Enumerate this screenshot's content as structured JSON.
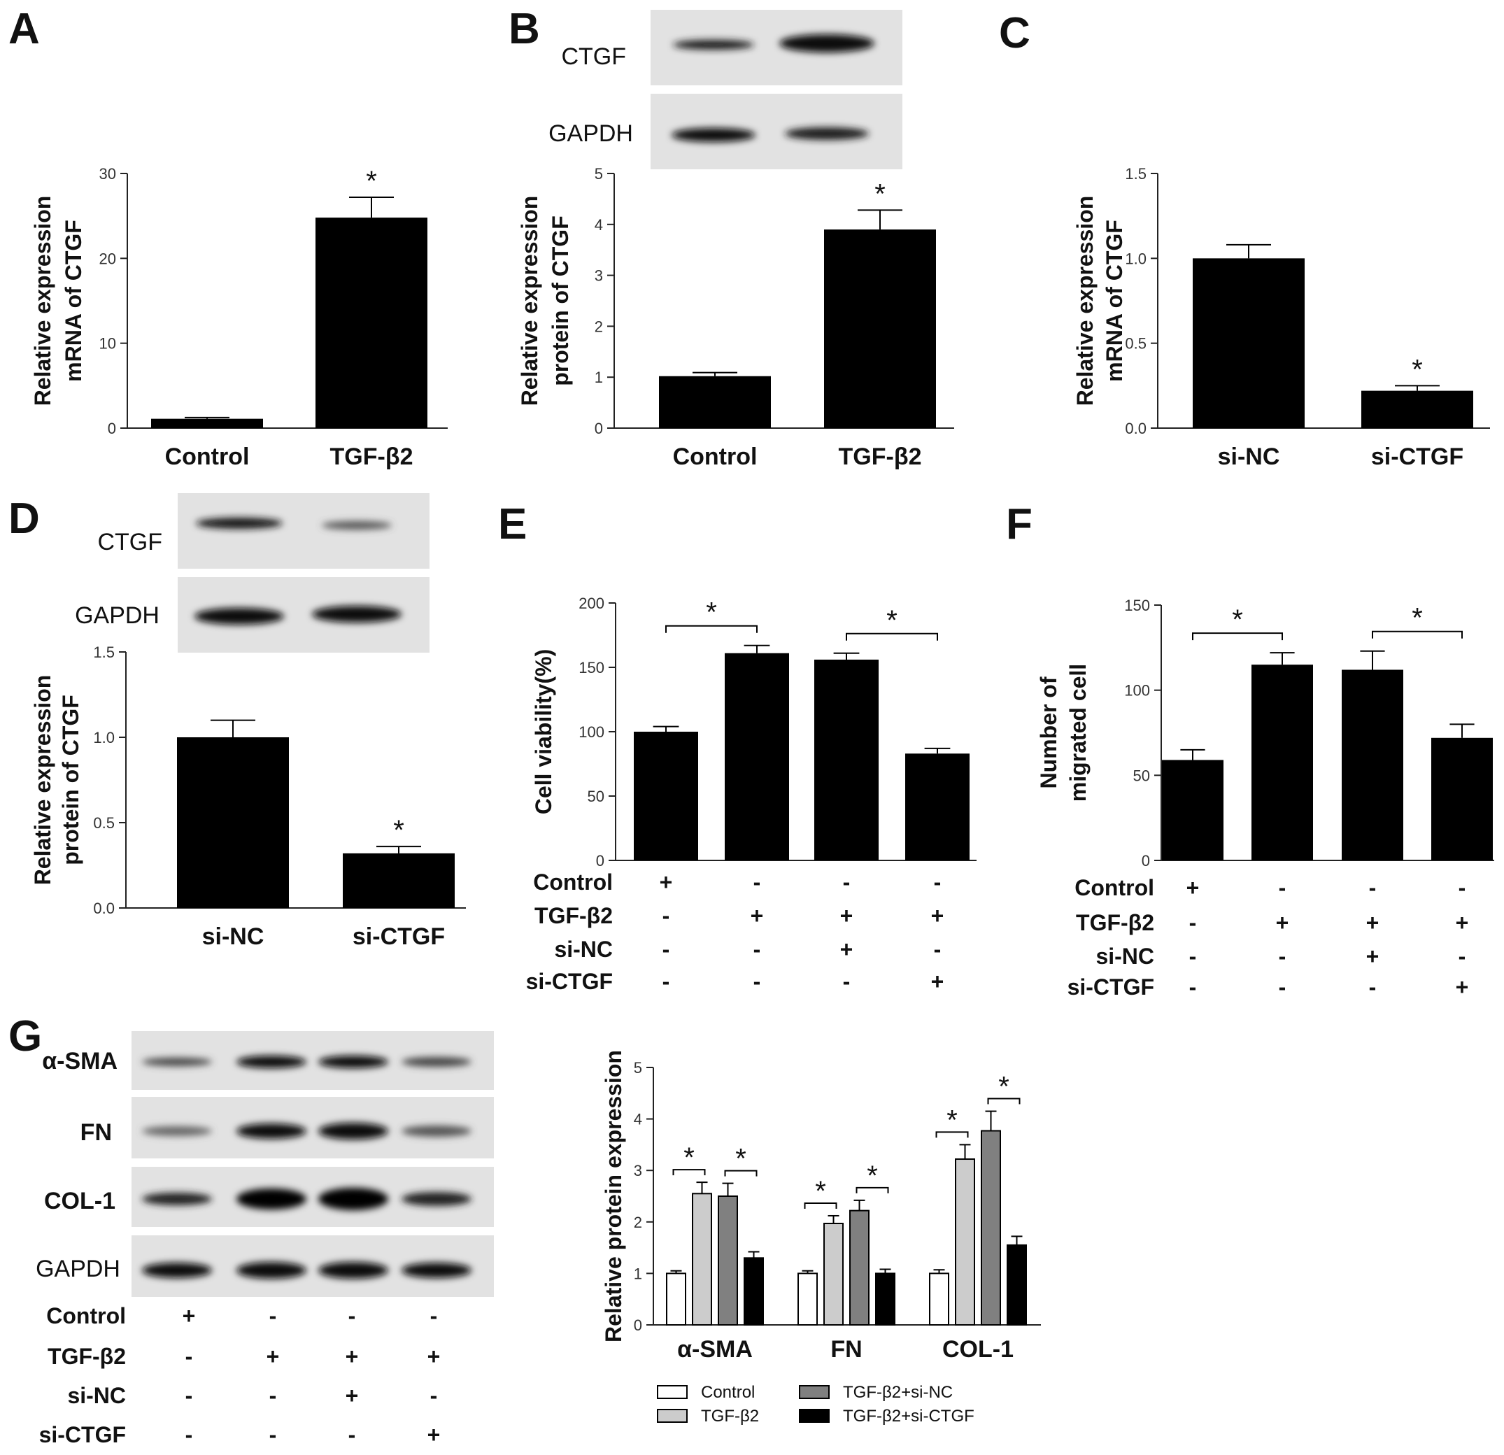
{
  "panel_letters": [
    "A",
    "B",
    "C",
    "D",
    "E",
    "F",
    "G"
  ],
  "blots": {
    "B": {
      "rows": [
        "CTGF",
        "GAPDH"
      ]
    },
    "D": {
      "rows": [
        "CTGF",
        "GAPDH"
      ]
    },
    "G": {
      "rows": [
        "α-SMA",
        "FN",
        "COL-1",
        "GAPDH"
      ]
    }
  },
  "treatment_rows": [
    "Control",
    "TGF-β2",
    "si-NC",
    "si-CTGF"
  ],
  "treatment_matrix": [
    [
      "+",
      "-",
      "-",
      "-"
    ],
    [
      "-",
      "+",
      "+",
      "+"
    ],
    [
      "-",
      "-",
      "+",
      "-"
    ],
    [
      "-",
      "-",
      "-",
      "+"
    ]
  ],
  "chart_data": [
    {
      "panel": "A",
      "type": "bar",
      "categories": [
        "Control",
        "TGF-β2"
      ],
      "values": [
        1.1,
        24.8
      ],
      "errors": [
        0.15,
        2.4
      ],
      "ylabel": [
        "Relative expression",
        "mRNA of CTGF"
      ],
      "ylim": [
        0,
        30
      ],
      "yticks": [
        0,
        10,
        20,
        30
      ],
      "tick_format": "0",
      "stars": [
        1
      ],
      "brackets": []
    },
    {
      "panel": "B",
      "type": "bar",
      "categories": [
        "Control",
        "TGF-β2"
      ],
      "values": [
        1.02,
        3.9
      ],
      "errors": [
        0.07,
        0.38
      ],
      "ylabel": [
        "Relative expression",
        "protein of CTGF"
      ],
      "ylim": [
        0,
        5
      ],
      "yticks": [
        0,
        1,
        2,
        3,
        4,
        5
      ],
      "tick_format": "0",
      "stars": [
        1
      ],
      "brackets": []
    },
    {
      "panel": "C",
      "type": "bar",
      "categories": [
        "si-NC",
        "si-CTGF"
      ],
      "values": [
        1.0,
        0.22
      ],
      "errors": [
        0.08,
        0.03
      ],
      "ylabel": [
        "Relative expression",
        "mRNA of CTGF"
      ],
      "ylim": [
        0,
        1.5
      ],
      "yticks": [
        0,
        0.5,
        1.0,
        1.5
      ],
      "tick_format": "0.0",
      "stars": [
        1
      ],
      "brackets": []
    },
    {
      "panel": "D",
      "type": "bar",
      "categories": [
        "si-NC",
        "si-CTGF"
      ],
      "values": [
        1.0,
        0.32
      ],
      "errors": [
        0.1,
        0.04
      ],
      "ylabel": [
        "Relative expression",
        "protein of CTGF"
      ],
      "ylim": [
        0,
        1.5
      ],
      "yticks": [
        0,
        0.5,
        1.0,
        1.5
      ],
      "tick_format": "0.0",
      "stars": [
        1
      ],
      "brackets": []
    },
    {
      "panel": "E",
      "type": "bar",
      "categories": [
        "",
        "",
        "",
        ""
      ],
      "values": [
        100,
        161,
        156,
        83
      ],
      "errors": [
        4,
        6,
        5,
        4
      ],
      "ylabel": [
        "Cell  viability(%)"
      ],
      "ylim": [
        0,
        200
      ],
      "yticks": [
        0,
        50,
        100,
        150,
        200
      ],
      "tick_format": "0",
      "stars": [],
      "brackets": [
        [
          0,
          1
        ],
        [
          2,
          3
        ]
      ]
    },
    {
      "panel": "F",
      "type": "bar",
      "categories": [
        "",
        "",
        "",
        ""
      ],
      "values": [
        59,
        115,
        112,
        72
      ],
      "errors": [
        6,
        7,
        11,
        8
      ],
      "ylabel": [
        "Number of",
        "migrated cell"
      ],
      "ylim": [
        0,
        150
      ],
      "yticks": [
        0,
        50,
        100,
        150
      ],
      "tick_format": "0",
      "stars": [],
      "brackets": [
        [
          0,
          1
        ],
        [
          2,
          3
        ]
      ]
    },
    {
      "panel": "G",
      "type": "bar",
      "categories": [
        "α-SMA",
        "FN",
        "COL-1"
      ],
      "series": [
        {
          "name": "Control",
          "color": "#ffffff",
          "values": [
            1.0,
            1.0,
            1.0
          ],
          "errors": [
            0.05,
            0.05,
            0.07
          ]
        },
        {
          "name": "TGF-β2",
          "color": "#cccccc",
          "values": [
            2.55,
            1.97,
            3.22
          ],
          "errors": [
            0.22,
            0.15,
            0.28
          ]
        },
        {
          "name": "TGF-β2+si-NC",
          "color": "#808080",
          "values": [
            2.5,
            2.22,
            3.77
          ],
          "errors": [
            0.25,
            0.2,
            0.38
          ]
        },
        {
          "name": "TGF-β2+si-CTGF",
          "color": "#000000",
          "values": [
            1.3,
            1.0,
            1.55
          ],
          "errors": [
            0.12,
            0.08,
            0.17
          ]
        }
      ],
      "ylabel": [
        "Relative protein expression"
      ],
      "ylim": [
        0,
        5
      ],
      "yticks": [
        0,
        1,
        2,
        3,
        4,
        5
      ],
      "tick_format": "0",
      "brackets": [
        [
          0,
          1
        ],
        [
          2,
          3
        ]
      ]
    }
  ]
}
